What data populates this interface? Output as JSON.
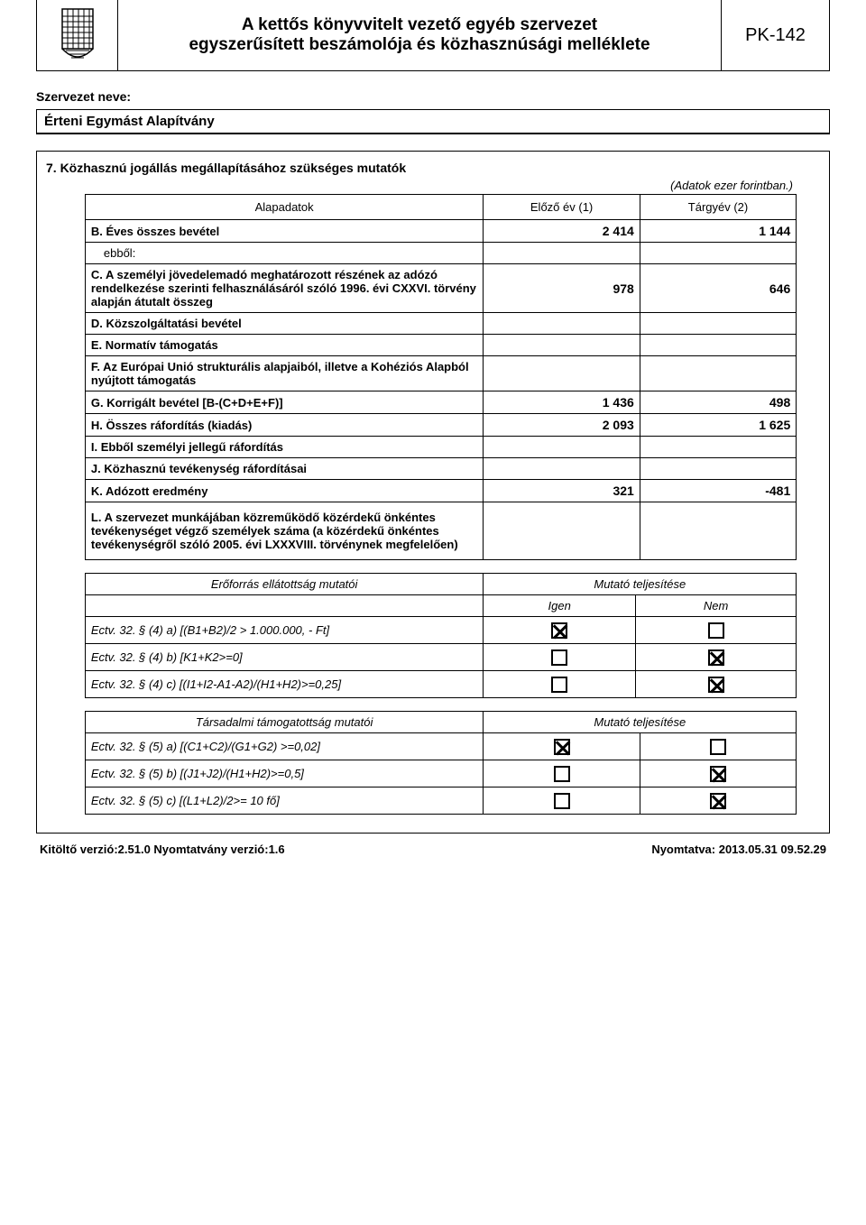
{
  "header": {
    "title_line1": "A kettős könyvvitelt vezető egyéb szervezet",
    "title_line2": "egyszerűsített beszámolója és közhasznúsági melléklete",
    "code": "PK-142"
  },
  "org": {
    "label": "Szervezet neve:",
    "name": "Érteni Egymást Alapítvány"
  },
  "section": {
    "title": "7. Közhasznú jogállás megállapításához szükséges mutatók",
    "subtitle": "(Adatok ezer forintban.)"
  },
  "main_table": {
    "columns": [
      "Alapadatok",
      "Előző év (1)",
      "Tárgyév (2)"
    ],
    "rows": [
      {
        "label": "B. Éves összes bevétel",
        "prev": "2 414",
        "curr": "1 144",
        "bold": true
      },
      {
        "label": "ebből:",
        "prev": "",
        "curr": "",
        "sub": true
      },
      {
        "label": "C. A személyi jövedelemadó meghatározott részének az adózó rendelkezése szerinti felhasználásáról szóló 1996. évi CXXVI. törvény alapján átutalt összeg",
        "prev": "978",
        "curr": "646",
        "bold": true,
        "tall": true
      },
      {
        "label": "D. Közszolgáltatási bevétel",
        "prev": "",
        "curr": "",
        "bold": true
      },
      {
        "label": "E. Normatív támogatás",
        "prev": "",
        "curr": "",
        "bold": true
      },
      {
        "label": "F. Az Európai Unió strukturális alapjaiból, illetve a Kohéziós Alapból nyújtott támogatás",
        "prev": "",
        "curr": "",
        "bold": true
      },
      {
        "label": "G. Korrigált bevétel [B-(C+D+E+F)]",
        "prev": "1 436",
        "curr": "498",
        "bold": true
      },
      {
        "label": "H. Összes ráfordítás (kiadás)",
        "prev": "2 093",
        "curr": "1 625",
        "bold": true
      },
      {
        "label": "I. Ebből személyi jellegű ráfordítás",
        "prev": "",
        "curr": "",
        "bold": true
      },
      {
        "label": "J. Közhasznú tevékenység ráfordításai",
        "prev": "",
        "curr": "",
        "bold": true
      },
      {
        "label": "K. Adózott eredmény",
        "prev": "321",
        "curr": "-481",
        "bold": true
      },
      {
        "label": "L. A szervezet munkájában közreműködő közérdekű önkéntes tevékenységet végző személyek száma (a közérdekű önkéntes tevékenységről szóló 2005. évi LXXXVIII. törvénynek megfelelően)",
        "prev": "",
        "curr": "",
        "bold": true,
        "xtall": true
      }
    ]
  },
  "indicators1": {
    "header_left": "Erőforrás ellátottság mutatói",
    "header_right": "Mutató teljesítése",
    "yes": "Igen",
    "no": "Nem",
    "rows": [
      {
        "label": "Ectv. 32. § (4) a) [(B1+B2)/2 > 1.000.000, - Ft]",
        "yes": true,
        "no": false
      },
      {
        "label": "Ectv. 32. § (4) b) [K1+K2>=0]",
        "yes": false,
        "no": true
      },
      {
        "label": "Ectv. 32. § (4) c) [(I1+I2-A1-A2)/(H1+H2)>=0,25]",
        "yes": false,
        "no": true
      }
    ]
  },
  "indicators2": {
    "header_left": "Társadalmi támogatottság mutatói",
    "header_right": "Mutató teljesítése",
    "rows": [
      {
        "label": "Ectv. 32. § (5) a) [(C1+C2)/(G1+G2) >=0,02]",
        "yes": true,
        "no": false
      },
      {
        "label": "Ectv. 32. § (5) b) [(J1+J2)/(H1+H2)>=0,5]",
        "yes": false,
        "no": true
      },
      {
        "label": "Ectv. 32. § (5) c) [(L1+L2)/2>= 10 fő]",
        "yes": false,
        "no": true
      }
    ]
  },
  "footer": {
    "left": "Kitöltő verzió:2.51.0  Nyomtatvány verzió:1.6",
    "right": "Nyomtatva: 2013.05.31 09.52.29"
  }
}
